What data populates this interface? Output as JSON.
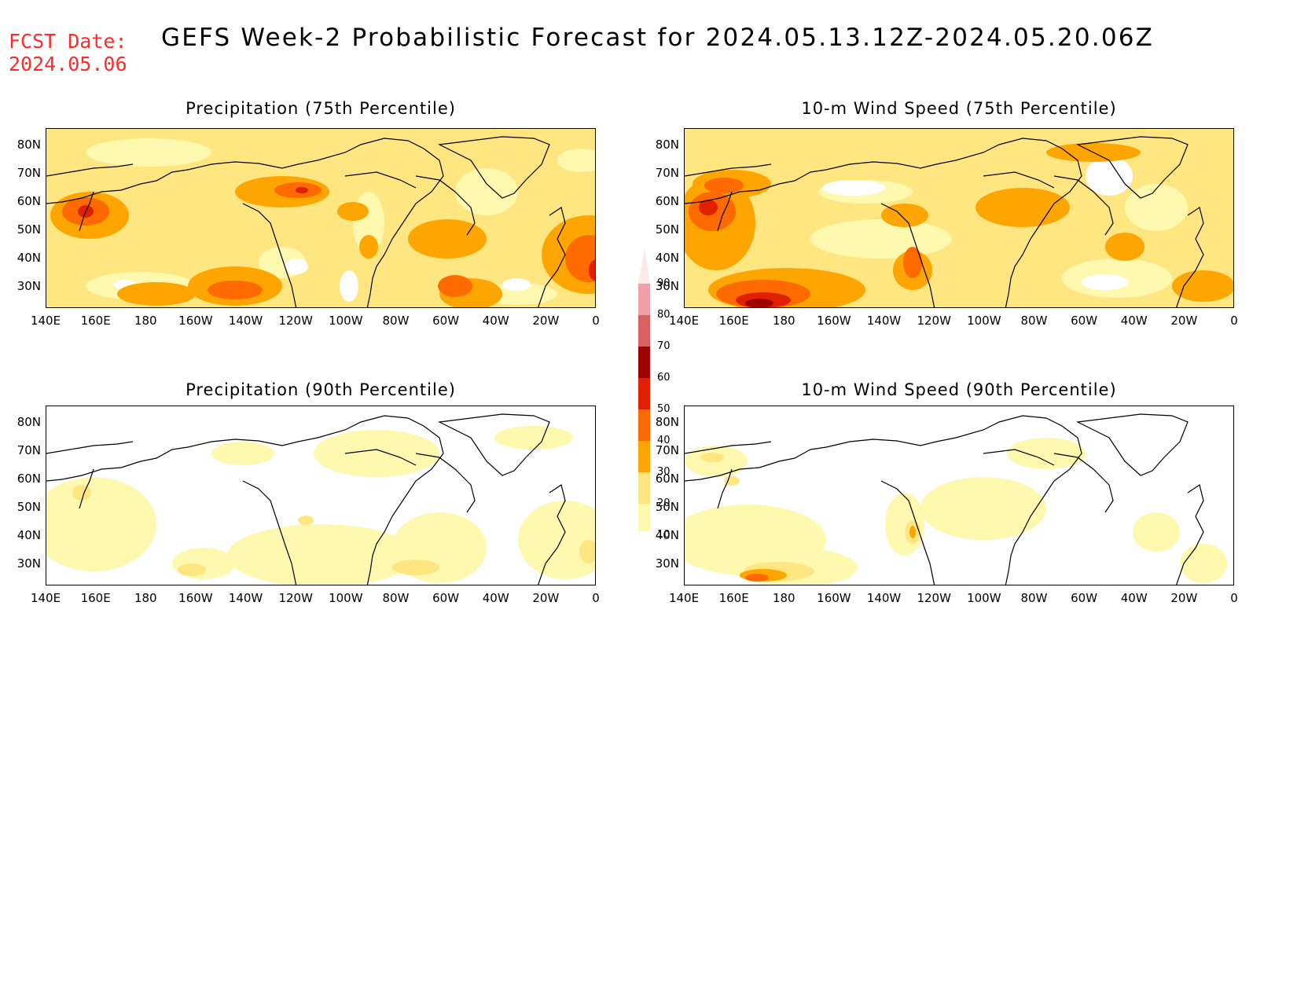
{
  "header": {
    "fcst_label": "FCST Date:",
    "fcst_date": "2024.05.06",
    "title": "GEFS Week-2 Probabilistic Forecast for 2024.05.13.12Z-2024.05.20.06Z"
  },
  "panels": [
    {
      "title": "Precipitation (75th Percentile)",
      "variable": "precip",
      "percentile": 75
    },
    {
      "title": "10-m Wind Speed (75th Percentile)",
      "variable": "wind",
      "percentile": 75
    },
    {
      "title": "Precipitation (90th Percentile)",
      "variable": "precip",
      "percentile": 90
    },
    {
      "title": "10-m Wind Speed (90th Percentile)",
      "variable": "wind",
      "percentile": 90
    }
  ],
  "axes": {
    "lat_labels": [
      "80N",
      "70N",
      "60N",
      "50N",
      "40N",
      "30N"
    ],
    "lon_labels": [
      "140E",
      "160E",
      "180",
      "160W",
      "140W",
      "120W",
      "100W",
      "80W",
      "60W",
      "40W",
      "20W",
      "0"
    ]
  },
  "colorbar": {
    "levels": [
      "10",
      "20",
      "30",
      "40",
      "50",
      "60",
      "70",
      "80",
      "90"
    ],
    "colors": [
      "#fff9b0",
      "#ffe680",
      "#ffa500",
      "#ff6a00",
      "#e02000",
      "#a00000",
      "#d96060",
      "#f0a0a8",
      "#ffe8ea"
    ]
  }
}
